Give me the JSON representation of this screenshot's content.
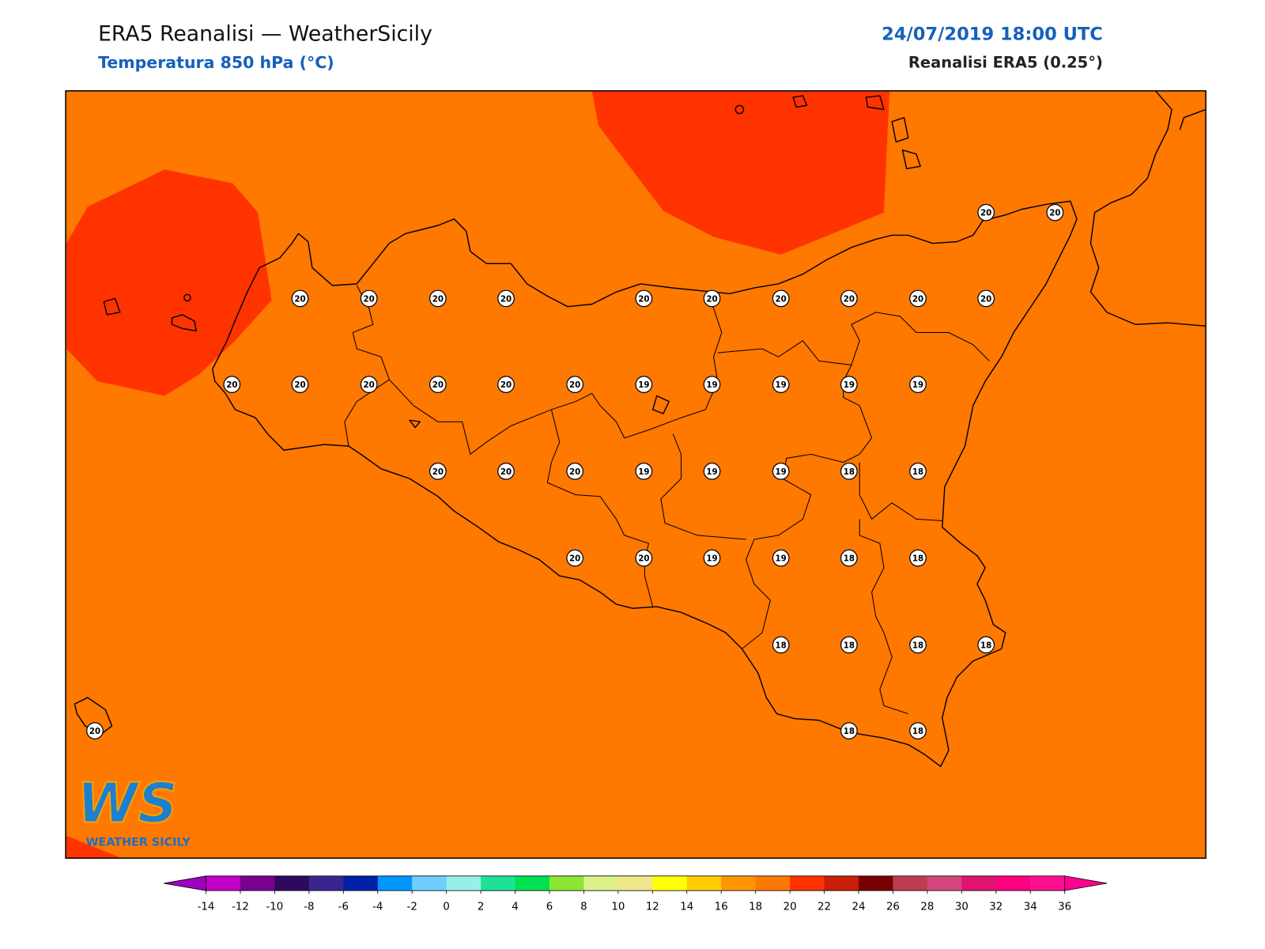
{
  "header": {
    "title": "ERA5 Reanalisi — WeatherSicily",
    "subtitle": "Temperatura 850 hPa (°C)",
    "datetime": "24/07/2019 18:00 UTC",
    "source": "Reanalisi ERA5 (0.25°)"
  },
  "map": {
    "background_color": "#ff7800",
    "warm_color": "#ff3300",
    "stations": [
      20,
      20,
      20,
      20,
      20,
      20,
      20,
      20,
      20,
      20,
      20,
      20,
      20,
      20,
      20,
      20,
      20,
      20,
      19,
      19,
      19,
      19,
      19,
      20,
      20,
      20,
      19,
      19,
      19,
      18,
      18,
      20,
      20,
      19,
      19,
      18,
      18,
      18,
      18,
      18,
      18,
      20,
      18,
      18
    ]
  },
  "logo": {
    "mark": "WS",
    "name": "WEATHER SICILY"
  },
  "colorbar": {
    "ticks": [
      -14,
      -12,
      -10,
      -8,
      -6,
      -4,
      -2,
      0,
      2,
      4,
      6,
      8,
      10,
      12,
      14,
      16,
      18,
      20,
      22,
      24,
      26,
      28,
      30,
      32,
      34,
      36
    ],
    "under_color": "#a000c0",
    "over_color": "#ff0090",
    "colors": [
      "#c000c8",
      "#7a0090",
      "#2e0a5e",
      "#3a2590",
      "#0020a8",
      "#0096ff",
      "#6ecfff",
      "#96f0e6",
      "#1ee196",
      "#00e050",
      "#8ce632",
      "#dcf08c",
      "#f0e68c",
      "#ffff00",
      "#ffcc00",
      "#ff9600",
      "#ff7800",
      "#ff3200",
      "#c81e0a",
      "#780000",
      "#be3c50",
      "#d2467d",
      "#e01470",
      "#ff0080",
      "#ff1090"
    ]
  }
}
